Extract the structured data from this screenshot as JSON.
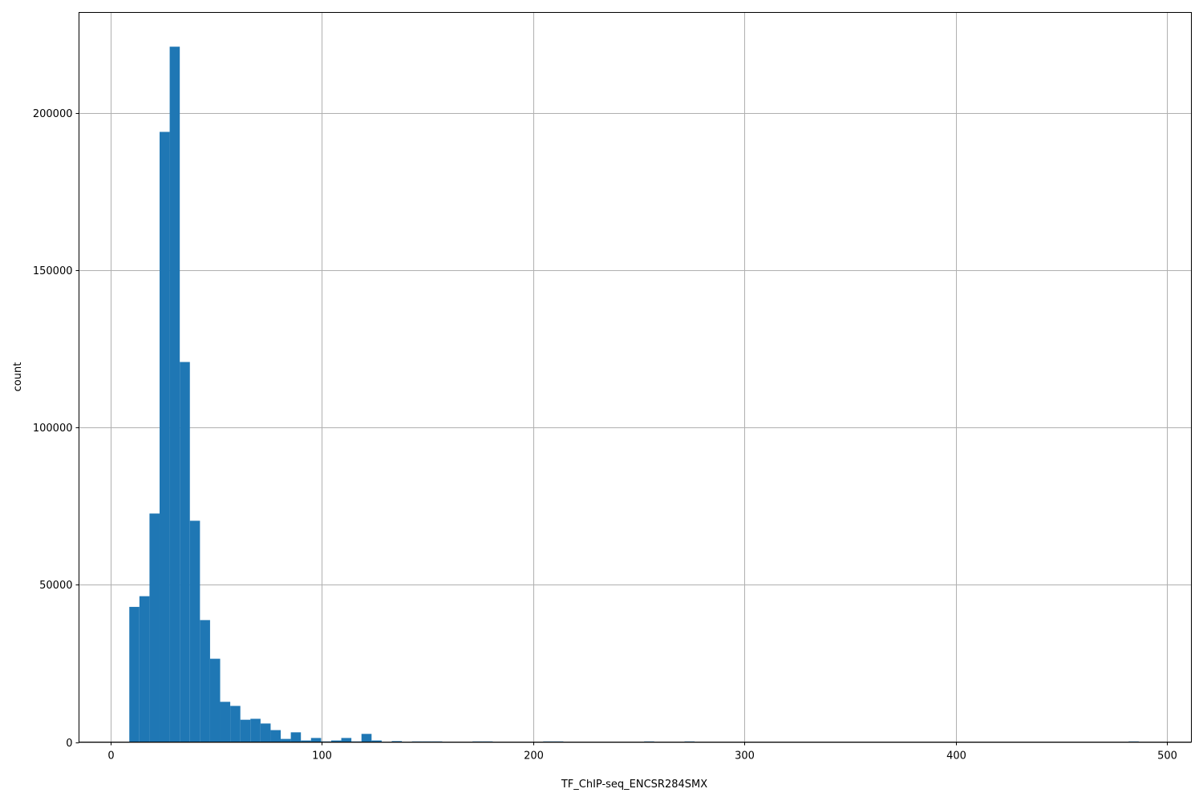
{
  "chart_data": {
    "type": "bar",
    "title": "",
    "xlabel": "TF_ChIP-seq_ENCSR284SMX",
    "ylabel": "count",
    "xlim": [
      -14.8,
      511.4
    ],
    "ylim": [
      0,
      232100
    ],
    "grid": true,
    "bar_color": "#1f77b4",
    "grid_color": "#b0b0b0",
    "bins": {
      "min": 9,
      "max": 486.5,
      "count": 100
    },
    "values": [
      43000,
      46400,
      72700,
      194100,
      221200,
      120900,
      70400,
      38800,
      26500,
      12800,
      11500,
      7100,
      7400,
      5900,
      3800,
      1000,
      3100,
      500,
      1300,
      200,
      500,
      1300,
      200,
      2600,
      500,
      0,
      300,
      0,
      200,
      200,
      200,
      0,
      0,
      0,
      200,
      200,
      0,
      0,
      0,
      0,
      0,
      200,
      200,
      0,
      0,
      0,
      0,
      0,
      0,
      0,
      0,
      200,
      0,
      0,
      0,
      200,
      0,
      0,
      0,
      0,
      0,
      0,
      0,
      0,
      0,
      0,
      0,
      0,
      0,
      0,
      0,
      0,
      0,
      0,
      0,
      0,
      0,
      0,
      0,
      0,
      0,
      0,
      0,
      0,
      0,
      0,
      0,
      0,
      0,
      0,
      0,
      0,
      0,
      0,
      0,
      0,
      0,
      0,
      0,
      200
    ],
    "xticks": [
      0,
      100,
      200,
      300,
      400,
      500
    ],
    "xtick_labels": [
      "0",
      "100",
      "200",
      "300",
      "400",
      "500"
    ],
    "yticks": [
      0,
      50000,
      100000,
      150000,
      200000
    ],
    "ytick_labels": [
      "0",
      "50000",
      "100000",
      "150000",
      "200000"
    ]
  }
}
